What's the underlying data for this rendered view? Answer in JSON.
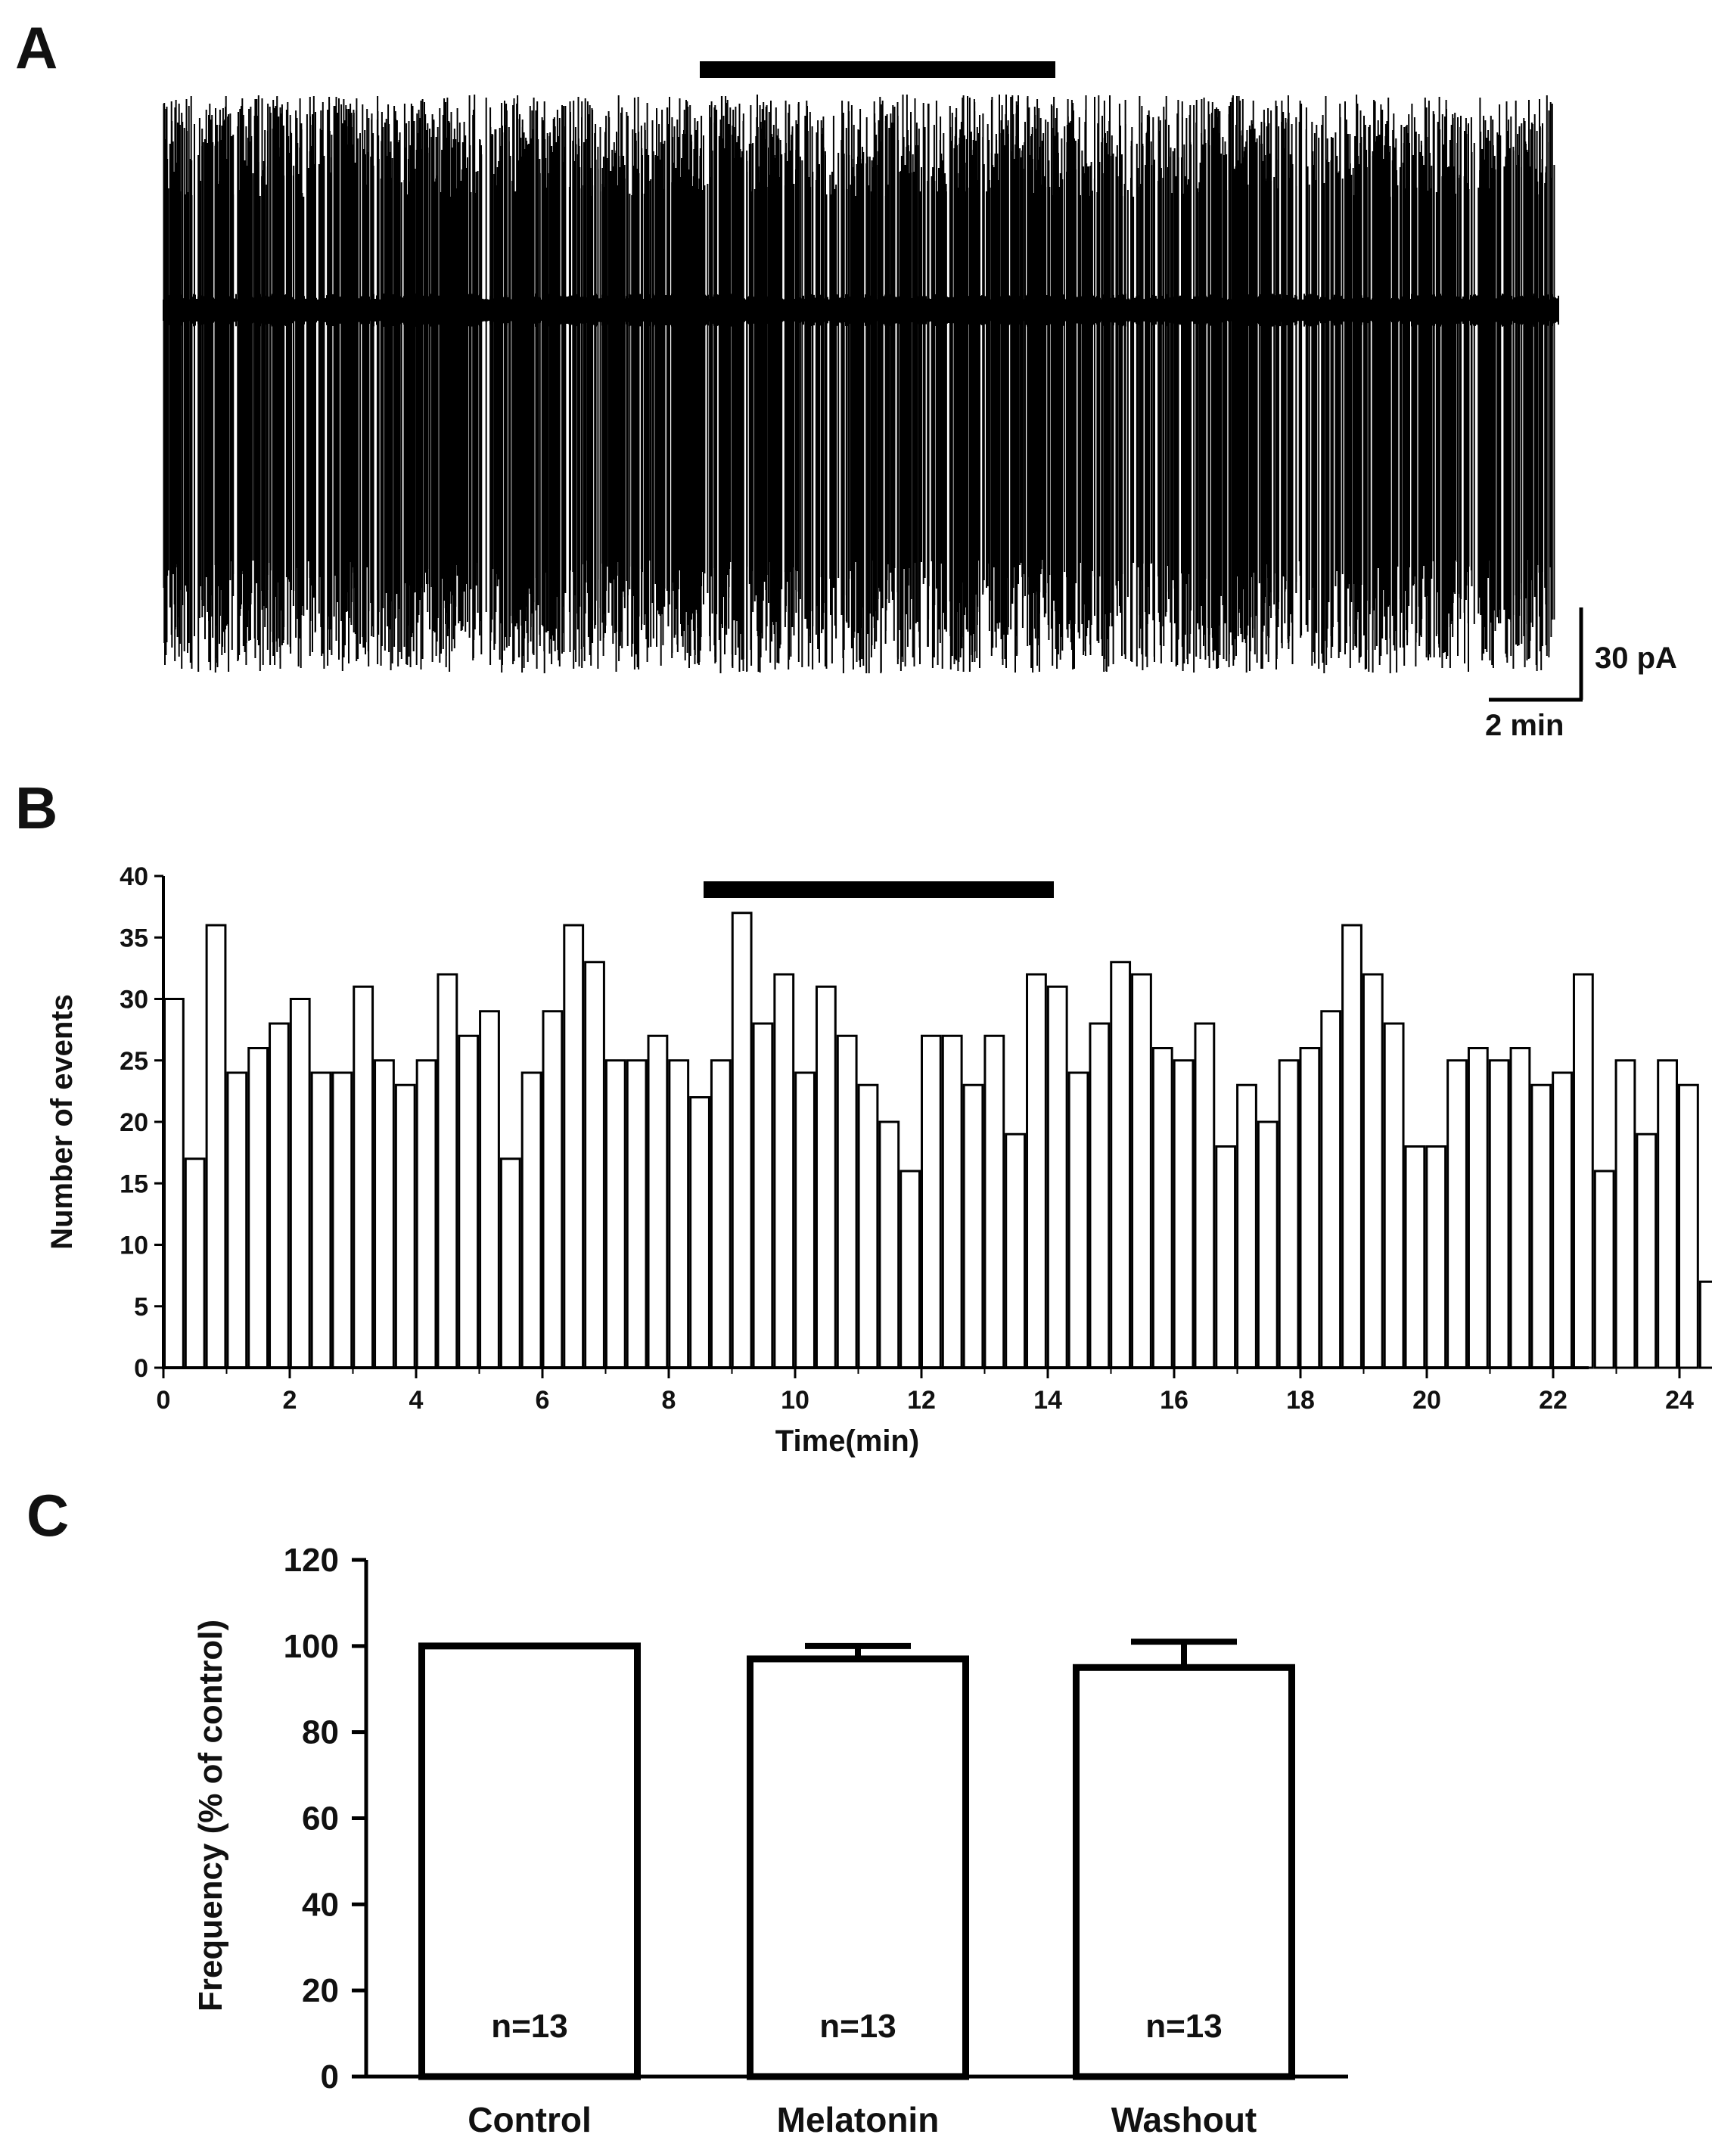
{
  "panel_labels": {
    "a": "A",
    "b": "B",
    "c": "C"
  },
  "trace": {
    "scale_current": "30 pA",
    "scale_time": "2 min",
    "duration_min": 24.4,
    "treatment_min": [
      9.4,
      15.5
    ]
  },
  "chart_data": [
    {
      "type": "bar",
      "panel": "B",
      "xlabel": "Time(min)",
      "ylabel": "Number of events",
      "xlim": [
        0,
        25
      ],
      "ylim": [
        0,
        40
      ],
      "x_ticks": [
        "0",
        "2",
        "4",
        "6",
        "8",
        "10",
        "12",
        "14",
        "16",
        "18",
        "20",
        "22",
        "24"
      ],
      "y_ticks": [
        "0",
        "5",
        "10",
        "15",
        "20",
        "25",
        "30",
        "35",
        "40"
      ],
      "bin_width_min": 0.333,
      "treatment_min": [
        9.4,
        15.5
      ],
      "values": [
        30,
        17,
        36,
        24,
        26,
        28,
        30,
        24,
        24,
        31,
        25,
        23,
        25,
        32,
        27,
        29,
        17,
        24,
        29,
        36,
        33,
        25,
        25,
        27,
        25,
        22,
        25,
        37,
        28,
        32,
        24,
        31,
        27,
        23,
        20,
        16,
        27,
        27,
        23,
        27,
        19,
        32,
        31,
        24,
        28,
        33,
        32,
        26,
        25,
        28,
        18,
        23,
        20,
        25,
        26,
        29,
        36,
        32,
        28,
        18,
        18,
        25,
        26,
        25,
        26,
        23,
        24,
        32,
        16,
        25,
        19,
        25,
        23,
        7
      ]
    },
    {
      "type": "bar",
      "panel": "C",
      "xlabel": "",
      "ylabel": "Frequency (% of control)",
      "ylim": [
        0,
        120
      ],
      "y_ticks": [
        "0",
        "20",
        "40",
        "60",
        "80",
        "100",
        "120"
      ],
      "categories": [
        "Control",
        "Melatonin",
        "Washout"
      ],
      "values": [
        100,
        97,
        95
      ],
      "errors": [
        0,
        3,
        6
      ],
      "n_labels": [
        "n=13",
        "n=13",
        "n=13"
      ]
    }
  ]
}
